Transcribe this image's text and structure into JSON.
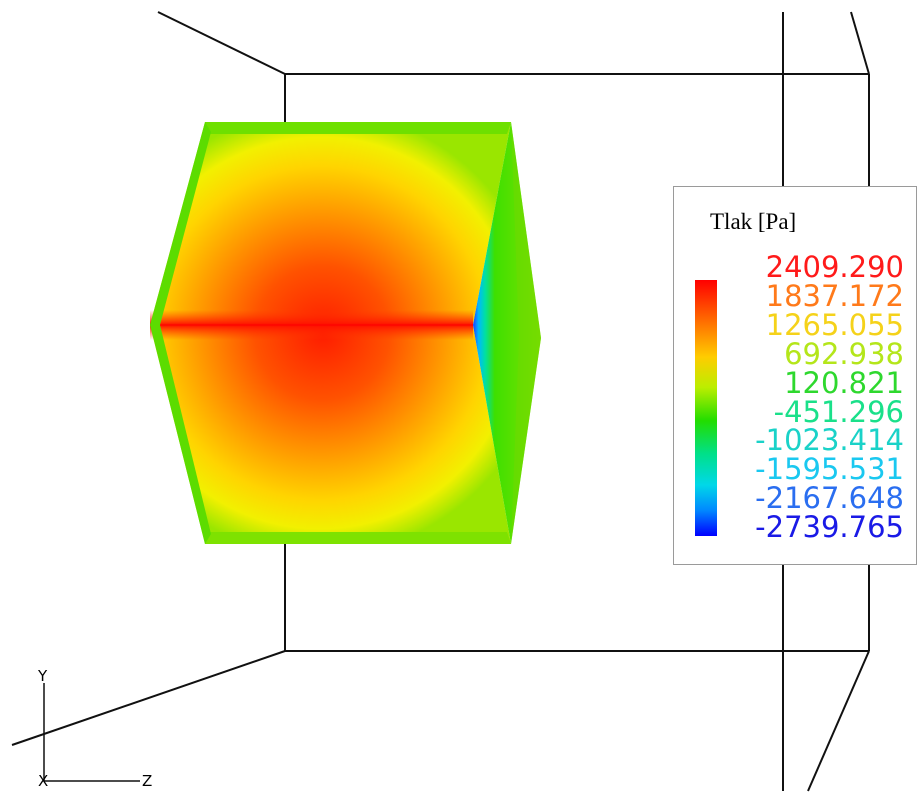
{
  "legend": {
    "title": "Tlak [Pa]",
    "labels": [
      {
        "text": "2409.290",
        "color": "#ff1a1a"
      },
      {
        "text": "1837.172",
        "color": "#ff7a1a"
      },
      {
        "text": "1265.055",
        "color": "#f5d21a"
      },
      {
        "text": "692.938",
        "color": "#b4e61a"
      },
      {
        "text": "120.821",
        "color": "#2ed82e"
      },
      {
        "text": "-451.296",
        "color": "#1ae08a"
      },
      {
        "text": "-1023.414",
        "color": "#1ad2c8"
      },
      {
        "text": "-1595.531",
        "color": "#1ac8f0"
      },
      {
        "text": "-2167.648",
        "color": "#2a6ef0"
      },
      {
        "text": "-2739.765",
        "color": "#1a1ae6"
      }
    ]
  },
  "axes": {
    "y_label": "Y",
    "z_label": "Z",
    "x_label": "X"
  },
  "colormap": [
    "#0000ff",
    "#00aaff",
    "#00e5e5",
    "#00e000",
    "#aaee00",
    "#ffee00",
    "#ff9900",
    "#ff0000"
  ]
}
